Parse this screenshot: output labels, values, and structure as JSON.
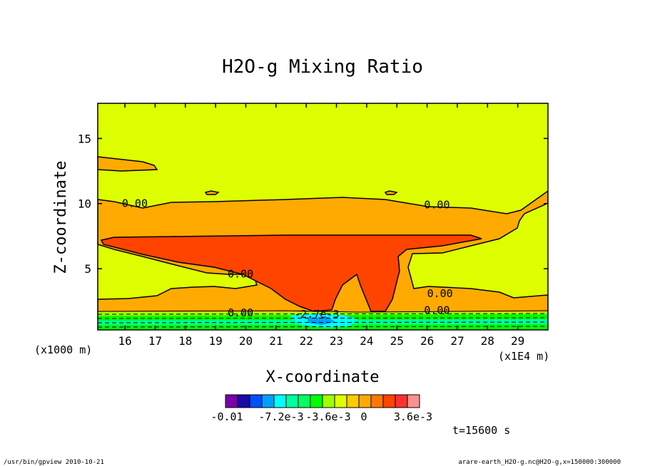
{
  "chart_data": {
    "type": "contour",
    "title": "H2O-g Mixing Ratio",
    "xlabel": "X-coordinate",
    "ylabel": "Z-coordinate",
    "x_unit_label": "(x1E4 m)",
    "y_unit_label": "(x1000 m)",
    "x_ticks": [
      16,
      17,
      18,
      19,
      20,
      21,
      22,
      23,
      24,
      25,
      26,
      27,
      28,
      29
    ],
    "y_ticks": [
      5,
      10,
      15
    ],
    "xlim": [
      15.1,
      30.0
    ],
    "ylim": [
      0.3,
      17.7
    ],
    "contour_labels": [
      {
        "text": "0.00",
        "x": 15.9,
        "z": 10.0
      },
      {
        "text": "0.00",
        "x": 25.9,
        "z": 9.9
      },
      {
        "text": "0.00",
        "x": 19.4,
        "z": 4.6
      },
      {
        "text": "0.00",
        "x": 26.0,
        "z": 3.1
      },
      {
        "text": "0.00",
        "x": 19.4,
        "z": 1.6
      },
      {
        "text": "0.00",
        "x": 25.9,
        "z": 1.8
      },
      {
        "text": "-2.7e-3",
        "x": 21.6,
        "z": 1.5
      }
    ],
    "colorbar": {
      "colors": [
        "#7a00a8",
        "#1a0aa8",
        "#0050ff",
        "#00a0ff",
        "#00ffff",
        "#00ffa0",
        "#00ff60",
        "#00ff00",
        "#a0ff00",
        "#ddff00",
        "#ffcc00",
        "#ffaa00",
        "#ff7700",
        "#ff4400",
        "#ff3030",
        "#ff9090"
      ],
      "tick_labels": [
        "-0.01",
        "-7.2e-3",
        "-3.6e-3",
        "0",
        "3.6e-3"
      ]
    }
  },
  "time_label": "t=15600 s",
  "footer_left": "/usr/bin/gpview  2010-10-21",
  "footer_right": "arare-earth_H2O-g.nc@H2O-g,x=150000:300000"
}
